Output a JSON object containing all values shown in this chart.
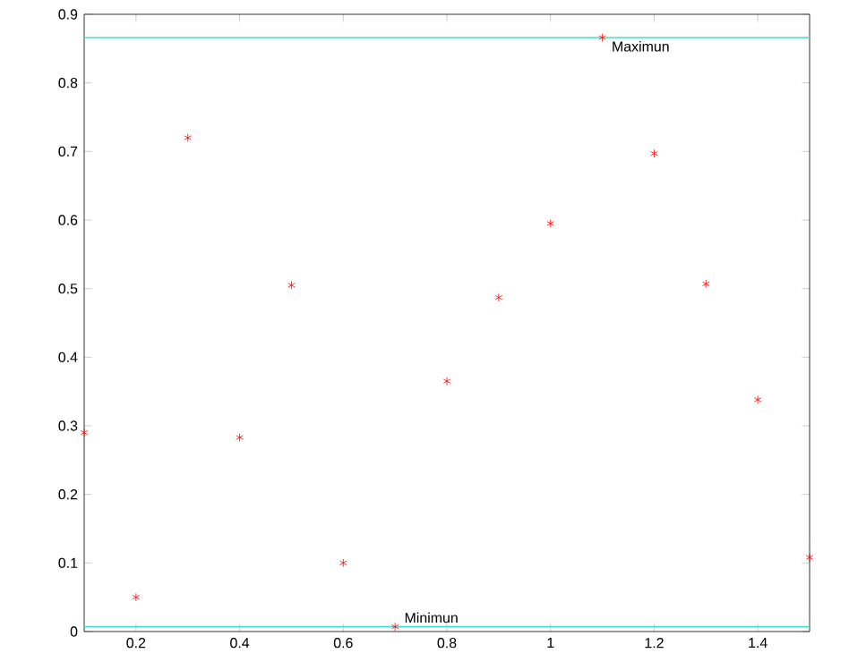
{
  "chart_data": {
    "type": "scatter",
    "marker": "cross",
    "x": [
      0.1,
      0.2,
      0.3,
      0.4,
      0.5,
      0.6,
      0.7,
      0.8,
      0.9,
      1.0,
      1.1,
      1.2,
      1.3,
      1.4,
      1.5
    ],
    "series": [
      {
        "color": "#ff0000",
        "values": [
          0.29,
          0.05,
          0.72,
          0.283,
          0.505,
          0.1,
          0.007,
          0.365,
          0.487,
          0.595,
          0.866,
          0.697,
          0.507,
          0.338,
          0.108
        ]
      }
    ],
    "xlim": [
      0.1,
      1.5
    ],
    "ylim": [
      0,
      0.9
    ],
    "xticks": [
      0.2,
      0.4,
      0.6,
      0.8,
      1,
      1.2,
      1.4
    ],
    "yticks": [
      0,
      0.1,
      0.2,
      0.3,
      0.4,
      0.5,
      0.6,
      0.7,
      0.8,
      0.9
    ],
    "grid": false,
    "ref_lines": [
      {
        "axis": "y",
        "value": 0.866,
        "color": "#40e0d0"
      },
      {
        "axis": "y",
        "value": 0.007,
        "color": "#40e0d0"
      }
    ],
    "annotations": [
      {
        "text": "Maximun",
        "x": 1.1,
        "y": 0.866
      },
      {
        "text": "Minimun",
        "x": 0.7,
        "y": 0.007
      }
    ]
  }
}
